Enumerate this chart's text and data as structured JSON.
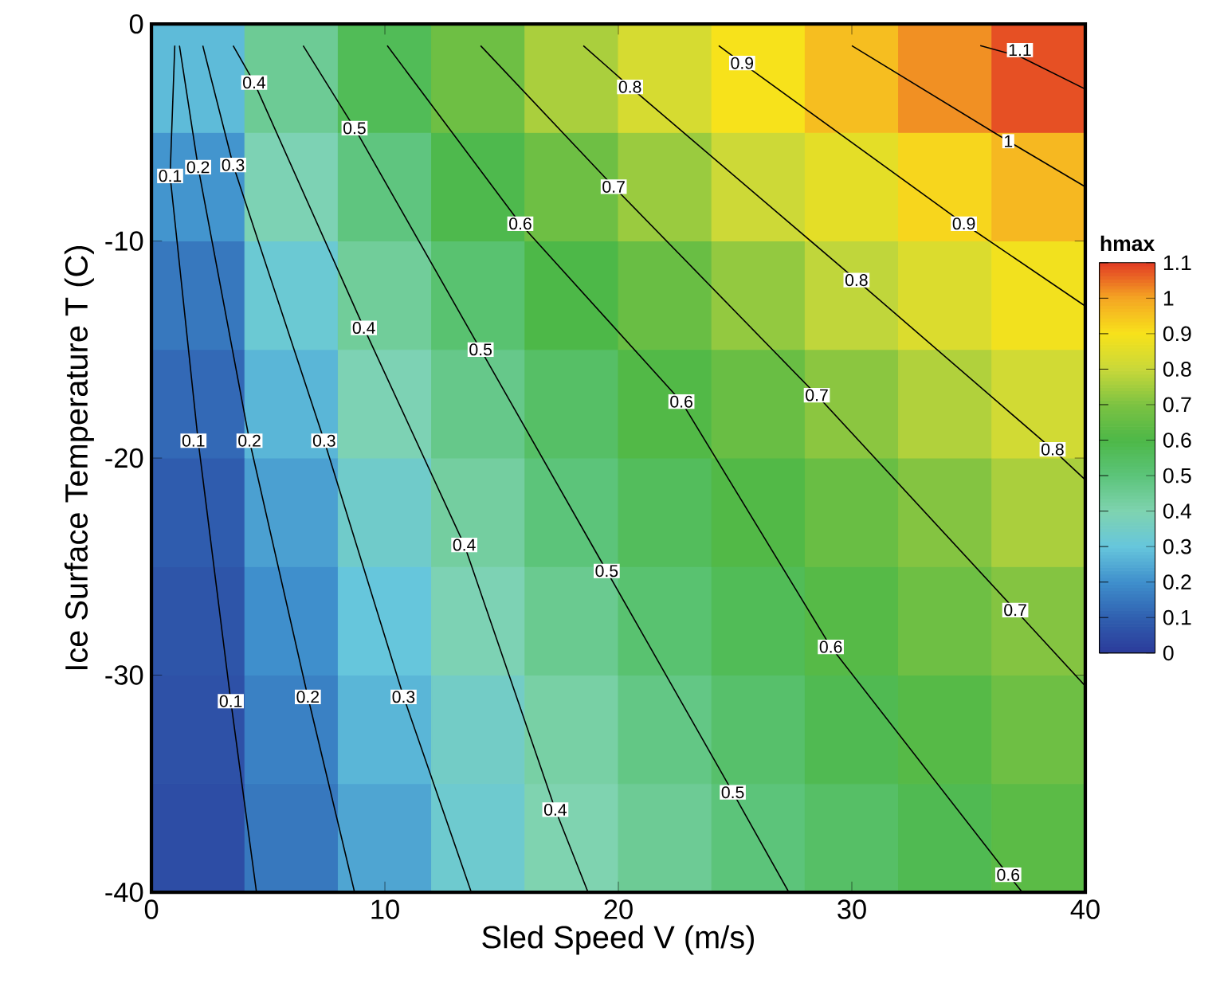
{
  "chart_data": {
    "type": "heatmap",
    "xlabel": "Sled Speed  V (m/s)",
    "ylabel": "Ice Surface Temperature  T (C)",
    "clabel": "hmax",
    "x": [
      2,
      6,
      10,
      14,
      18,
      22,
      26,
      30,
      34,
      38
    ],
    "cells": [
      [
        0.28,
        0.45,
        0.57,
        0.67,
        0.76,
        0.83,
        0.9,
        0.96,
        1.02,
        1.08
      ],
      [
        0.21,
        0.39,
        0.49,
        0.59,
        0.67,
        0.74,
        0.81,
        0.86,
        0.92,
        0.97
      ],
      [
        0.15,
        0.32,
        0.44,
        0.52,
        0.6,
        0.66,
        0.73,
        0.79,
        0.84,
        0.89
      ],
      [
        0.12,
        0.27,
        0.39,
        0.47,
        0.54,
        0.61,
        0.66,
        0.72,
        0.77,
        0.82
      ],
      [
        0.09,
        0.23,
        0.34,
        0.43,
        0.5,
        0.56,
        0.61,
        0.66,
        0.71,
        0.76
      ],
      [
        0.07,
        0.2,
        0.3,
        0.39,
        0.46,
        0.52,
        0.57,
        0.62,
        0.67,
        0.71
      ],
      [
        0.06,
        0.17,
        0.27,
        0.35,
        0.42,
        0.48,
        0.53,
        0.58,
        0.62,
        0.67
      ],
      [
        0.05,
        0.15,
        0.24,
        0.33,
        0.4,
        0.45,
        0.5,
        0.54,
        0.58,
        0.63
      ]
    ],
    "clim": [
      0,
      1.1
    ],
    "cticks": [
      0,
      0.1,
      0.2,
      0.3,
      0.4,
      0.5,
      0.6,
      0.7,
      0.8,
      0.9,
      1,
      1.1
    ],
    "xlim": [
      0,
      40
    ],
    "ylim": [
      -40,
      0
    ],
    "xticks": [
      0,
      10,
      20,
      30,
      40
    ],
    "yticks": [
      -40,
      -30,
      -20,
      -10,
      0
    ],
    "series": [
      {
        "type": "line",
        "color": "#000000",
        "x": [
          1,
          0.8,
          2,
          3.4,
          4.5
        ],
        "values": [
          -1,
          -7,
          -19.2,
          -31.2,
          -40
        ]
      },
      {
        "type": "line",
        "color": "#000000",
        "x": [
          1.2,
          2,
          4.2,
          6.7,
          8.7
        ],
        "values": [
          -1,
          -6.6,
          -19.2,
          -31,
          -40
        ]
      },
      {
        "type": "line",
        "color": "#000000",
        "x": [
          2.2,
          3.5,
          7.4,
          10.8,
          13.7
        ],
        "values": [
          -1,
          -6.5,
          -19.2,
          -31,
          -40
        ]
      },
      {
        "type": "line",
        "color": "#000000",
        "x": [
          3.5,
          4.4,
          9.1,
          13.4,
          17.3,
          18.7
        ],
        "values": [
          -1,
          -2.7,
          -14,
          -24,
          -36.2,
          -40
        ]
      },
      {
        "type": "line",
        "color": "#000000",
        "x": [
          6.5,
          8.7,
          14.1,
          19.5,
          24.9,
          27.3
        ],
        "values": [
          -1,
          -4.8,
          -15,
          -25.2,
          -35.4,
          -40
        ]
      },
      {
        "type": "line",
        "color": "#000000",
        "x": [
          10.1,
          15.8,
          22.7,
          29.1,
          36.7,
          37.3
        ],
        "values": [
          -1,
          -9.2,
          -17.4,
          -28.7,
          -39.2,
          -40
        ]
      },
      {
        "type": "line",
        "color": "#000000",
        "x": [
          14.1,
          19.8,
          28.5,
          37,
          40
        ],
        "values": [
          -1,
          -7.5,
          -17.1,
          -27,
          -30.5
        ]
      },
      {
        "type": "line",
        "color": "#000000",
        "x": [
          18.5,
          20.5,
          30.2,
          38.6,
          40
        ],
        "values": [
          -1,
          -2.9,
          -11.8,
          -19.6,
          -21
        ]
      },
      {
        "type": "line",
        "color": "#000000",
        "x": [
          24.3,
          25.3,
          34.8,
          40
        ],
        "values": [
          -1,
          -1.8,
          -9.2,
          -13
        ]
      },
      {
        "type": "line",
        "color": "#000000",
        "x": [
          30,
          36.7,
          40
        ],
        "values": [
          -1,
          -5.4,
          -7.5
        ]
      },
      {
        "type": "line",
        "color": "#000000",
        "x": [
          35.5,
          37.2,
          40
        ],
        "values": [
          -1,
          -1.5,
          -3
        ]
      }
    ],
    "annotations": [
      {
        "text": "0.1",
        "x": 0.8,
        "y": -7
      },
      {
        "text": "0.1",
        "x": 1.8,
        "y": -19.2
      },
      {
        "text": "0.1",
        "x": 3.4,
        "y": -31.2
      },
      {
        "text": "0.2",
        "x": 2,
        "y": -6.6
      },
      {
        "text": "0.2",
        "x": 4.2,
        "y": -19.2
      },
      {
        "text": "0.2",
        "x": 6.7,
        "y": -31
      },
      {
        "text": "0.3",
        "x": 3.5,
        "y": -6.5
      },
      {
        "text": "0.3",
        "x": 7.4,
        "y": -19.2
      },
      {
        "text": "0.3",
        "x": 10.8,
        "y": -31
      },
      {
        "text": "0.4",
        "x": 4.4,
        "y": -2.7
      },
      {
        "text": "0.4",
        "x": 9.1,
        "y": -14
      },
      {
        "text": "0.4",
        "x": 13.4,
        "y": -24
      },
      {
        "text": "0.4",
        "x": 17.3,
        "y": -36.2
      },
      {
        "text": "0.5",
        "x": 8.7,
        "y": -4.8
      },
      {
        "text": "0.5",
        "x": 14.1,
        "y": -15
      },
      {
        "text": "0.5",
        "x": 19.5,
        "y": -25.2
      },
      {
        "text": "0.5",
        "x": 24.9,
        "y": -35.4
      },
      {
        "text": "0.6",
        "x": 15.8,
        "y": -9.2
      },
      {
        "text": "0.6",
        "x": 22.7,
        "y": -17.4
      },
      {
        "text": "0.6",
        "x": 29.1,
        "y": -28.7
      },
      {
        "text": "0.6",
        "x": 36.7,
        "y": -39.2
      },
      {
        "text": "0.7",
        "x": 19.8,
        "y": -7.5
      },
      {
        "text": "0.7",
        "x": 28.5,
        "y": -17.1
      },
      {
        "text": "0.7",
        "x": 37,
        "y": -27
      },
      {
        "text": "0.8",
        "x": 20.5,
        "y": -2.9
      },
      {
        "text": "0.8",
        "x": 30.2,
        "y": -11.8
      },
      {
        "text": "0.8",
        "x": 38.6,
        "y": -19.6
      },
      {
        "text": "0.9",
        "x": 25.3,
        "y": -1.8
      },
      {
        "text": "0.9",
        "x": 34.8,
        "y": -9.2
      },
      {
        "text": "1",
        "x": 36.7,
        "y": -5.4
      },
      {
        "text": "1.1",
        "x": 37.2,
        "y": -1.2
      }
    ]
  }
}
